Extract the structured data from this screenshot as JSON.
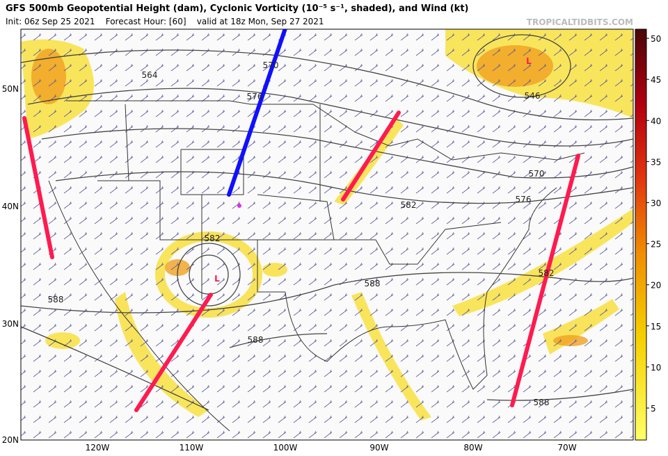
{
  "header": {
    "title": "GFS 500mb Geopotential Height (dam), Cyclonic Vorticity (10⁻⁵ s⁻¹, shaded), and Wind (kt)",
    "subtitle": "Init: 06z Sep 25 2021    Forecast Hour: [60]    valid at 18z Mon, Sep 27 2021",
    "watermark": "TROPICALTIDBITS.COM"
  },
  "map": {
    "latitude_labels": [
      "50N",
      "40N",
      "30N",
      "20N"
    ],
    "longitude_labels": [
      "120W",
      "110W",
      "100W",
      "90W",
      "80W",
      "70W"
    ],
    "contour_labels": [
      "564",
      "576",
      "570",
      "582",
      "582",
      "588",
      "588",
      "588",
      "588",
      "546",
      "570",
      "576",
      "582"
    ],
    "low_labels": [
      "L",
      "L"
    ]
  },
  "colorbar": {
    "ticks": [
      "5",
      "10",
      "15",
      "20",
      "25",
      "30",
      "35",
      "40",
      "45",
      "50"
    ]
  }
}
